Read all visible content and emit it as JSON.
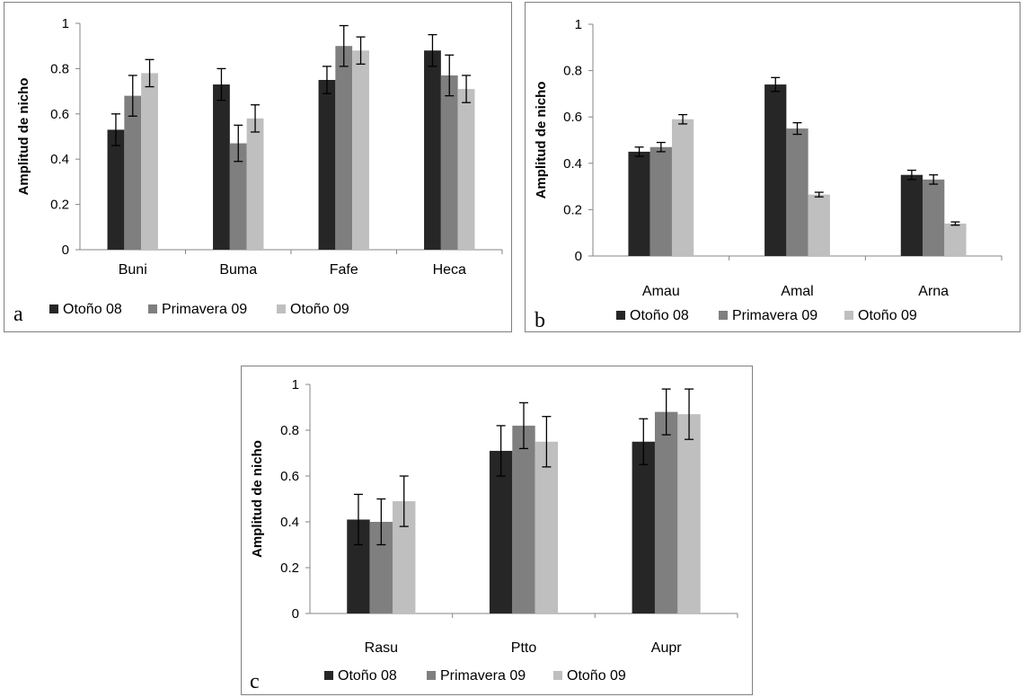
{
  "chart_data": [
    {
      "type": "bar",
      "panel_label": "a",
      "ylabel": "Amplitud de nicho",
      "ylim": [
        0,
        1
      ],
      "yticks": [
        "0",
        "0.2",
        "0.4",
        "0.6",
        "0.8",
        "1"
      ],
      "categories": [
        "Buni",
        "Buma",
        "Fafe",
        "Heca"
      ],
      "legend_position": "bottom",
      "series": [
        {
          "name": "Otoño 08",
          "color": "#262626",
          "values": [
            0.53,
            0.73,
            0.75,
            0.88
          ],
          "errors": [
            0.07,
            0.07,
            0.06,
            0.07
          ]
        },
        {
          "name": "Primavera 09",
          "color": "#7f7f7f",
          "values": [
            0.68,
            0.47,
            0.9,
            0.77
          ],
          "errors": [
            0.09,
            0.08,
            0.09,
            0.09
          ]
        },
        {
          "name": "Otoño 09",
          "color": "#bfbfbf",
          "values": [
            0.78,
            0.58,
            0.88,
            0.71
          ],
          "errors": [
            0.06,
            0.06,
            0.06,
            0.06
          ]
        }
      ]
    },
    {
      "type": "bar",
      "panel_label": "b",
      "ylabel": "Amplitud de nicho",
      "ylim": [
        0,
        1
      ],
      "yticks": [
        "0",
        "0.2",
        "0.4",
        "0.6",
        "0.8",
        "1"
      ],
      "categories": [
        "Amau",
        "Amal",
        "Arna"
      ],
      "legend_position": "bottom",
      "series": [
        {
          "name": "Otoño 08",
          "color": "#262626",
          "values": [
            0.45,
            0.74,
            0.35
          ],
          "errors": [
            0.02,
            0.03,
            0.02
          ]
        },
        {
          "name": "Primavera 09",
          "color": "#7f7f7f",
          "values": [
            0.47,
            0.55,
            0.33
          ],
          "errors": [
            0.02,
            0.025,
            0.02
          ]
        },
        {
          "name": "Otoño 09",
          "color": "#bfbfbf",
          "values": [
            0.59,
            0.265,
            0.14
          ],
          "errors": [
            0.02,
            0.01,
            0.007
          ]
        }
      ]
    },
    {
      "type": "bar",
      "panel_label": "c",
      "ylabel": "Amplitud de nicho",
      "ylim": [
        0,
        1
      ],
      "yticks": [
        "0",
        "0.2",
        "0.4",
        "0.6",
        "0.8",
        "1"
      ],
      "categories": [
        "Rasu",
        "Ptto",
        "Aupr"
      ],
      "legend_position": "bottom",
      "series": [
        {
          "name": "Otoño 08",
          "color": "#262626",
          "values": [
            0.41,
            0.71,
            0.75
          ],
          "errors": [
            0.11,
            0.11,
            0.1
          ]
        },
        {
          "name": "Primavera 09",
          "color": "#7f7f7f",
          "values": [
            0.4,
            0.82,
            0.88
          ],
          "errors": [
            0.1,
            0.1,
            0.1
          ]
        },
        {
          "name": "Otoño 09",
          "color": "#bfbfbf",
          "values": [
            0.49,
            0.75,
            0.87
          ],
          "errors": [
            0.11,
            0.11,
            0.11
          ]
        }
      ]
    }
  ]
}
